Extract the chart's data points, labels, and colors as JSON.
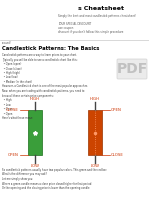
{
  "title": "s Cheatsheet",
  "subtitle1": "Simply the best and most candlestick patterns cheatsheet!",
  "subtitle2": "YOUR SPECIAL DISCOUNT",
  "subtitle3": "use coupon",
  "subtitle4": "discount if you don't follow this simple procedure",
  "section_heading": "Candlestick Patterns: The Basics",
  "body_lines": [
    "Candlestick patterns are a way to learn prices to your chart.",
    "Typically you will be able to see a candlestick chart like this:",
    "  • Open (open)",
    "  • Close (close)",
    "  • High (high)",
    "  • Low (low)",
    "  • Median (in the chart)",
    "However, a Candlestick chart is one of the most popular approaches.",
    "Now, when you are trading with candlestick patterns, you need to",
    "know all these certain price components:",
    "  • High",
    "  • Low",
    "  • Close",
    "  • Open",
    "Here's what these mean:"
  ],
  "footer_lines": [
    "So candlestick patterns usually have two popular colors. This green and the red bar.",
    "What's the difference you may ask?",
    "Let me simply show you:",
    "Where a green candle means a close price closed higher for that period",
    "Or the opening and the closing price is lower than the opening candle"
  ],
  "bullish_color": "#3a9e3a",
  "bearish_color": "#cc4400",
  "wick_color": "#444444",
  "label_color": "#cc3300",
  "bg_color": "#ffffff",
  "text_color": "#333333",
  "heading_color": "#000000",
  "pdf_bg": "#e0e0e0",
  "pdf_text": "#aaaaaa"
}
